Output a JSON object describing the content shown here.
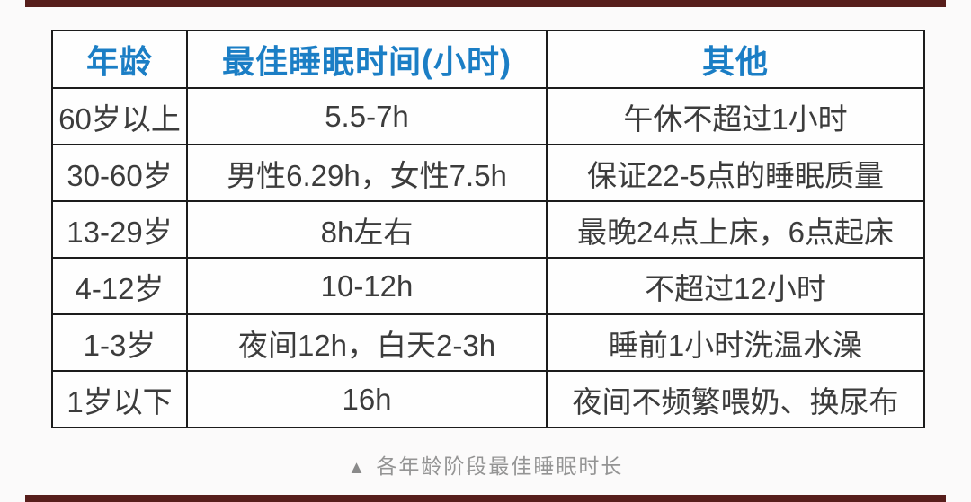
{
  "page": {
    "background": "#fbfafa",
    "accent_bar_color": "#571e1b"
  },
  "table": {
    "border_color": "#1c1c1c",
    "header_color": "#1b7ec5",
    "body_text_color": "#3c3c3c",
    "headers": [
      "年龄",
      "最佳睡眠时间(小时)",
      "其他"
    ],
    "rows": [
      {
        "age": "60岁以上",
        "sleep": "5.5-7h",
        "other": "午休不超过1小时"
      },
      {
        "age": "30-60岁",
        "sleep": "男性6.29h，女性7.5h",
        "other": "保证22-5点的睡眠质量"
      },
      {
        "age": "13-29岁",
        "sleep": "8h左右",
        "other": "最晚24点上床，6点起床"
      },
      {
        "age": "4-12岁",
        "sleep": "10-12h",
        "other": "不超过12小时"
      },
      {
        "age": "1-3岁",
        "sleep": "夜间12h，白天2-3h",
        "other": "睡前1小时洗温水澡"
      },
      {
        "age": "1岁以下",
        "sleep": "16h",
        "other": "夜间不频繁喂奶、换尿布"
      }
    ]
  },
  "caption": {
    "marker": "▲",
    "text": "各年龄阶段最佳睡眠时长"
  },
  "chart_data": {
    "type": "table",
    "title": "各年龄阶段最佳睡眠时长",
    "columns": [
      "年龄",
      "最佳睡眠时间(小时)",
      "其他"
    ],
    "rows": [
      [
        "60岁以上",
        "5.5-7h",
        "午休不超过1小时"
      ],
      [
        "30-60岁",
        "男性6.29h，女性7.5h",
        "保证22-5点的睡眠质量"
      ],
      [
        "13-29岁",
        "8h左右",
        "最晚24点上床，6点起床"
      ],
      [
        "4-12岁",
        "10-12h",
        "不超过12小时"
      ],
      [
        "1-3岁",
        "夜间12h，白天2-3h",
        "睡前1小时洗温水澡"
      ],
      [
        "1岁以下",
        "16h",
        "夜间不频繁喂奶、换尿布"
      ]
    ]
  }
}
